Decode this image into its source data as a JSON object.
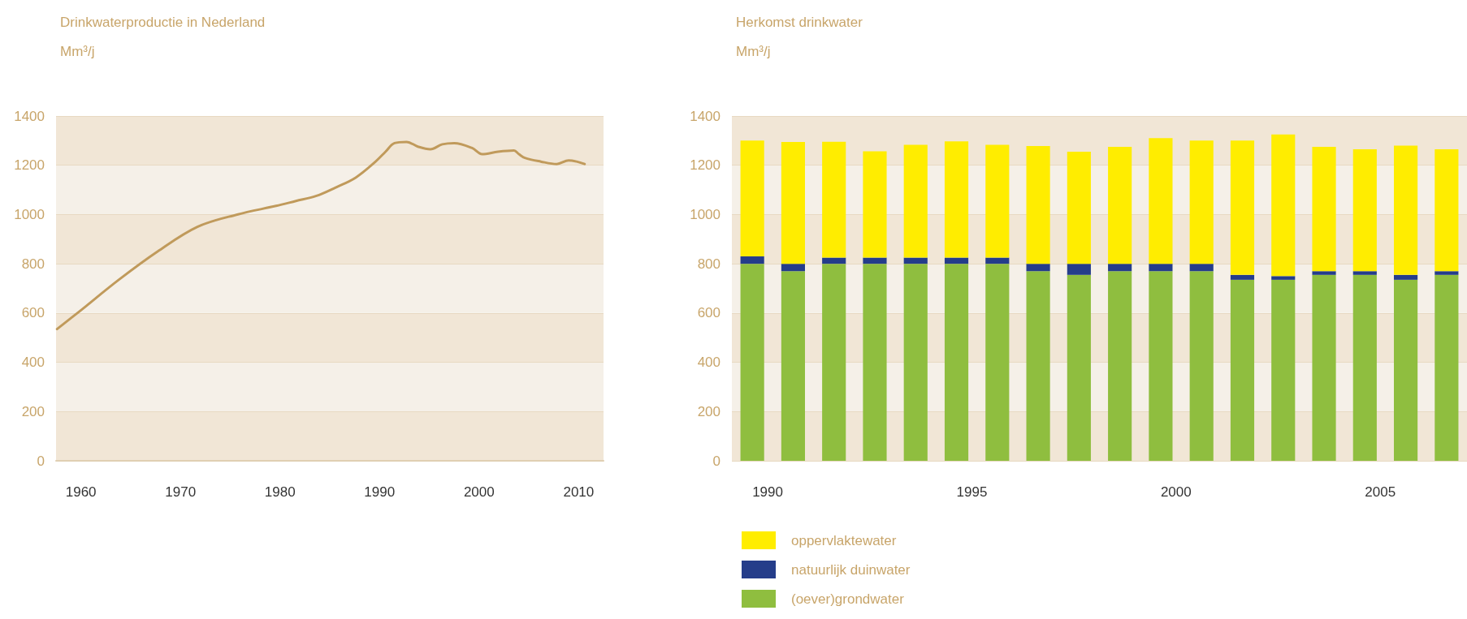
{
  "chart_data": [
    {
      "type": "line",
      "title": "Drinkwaterproductie in Nederland",
      "ylabel": "Mm³/j",
      "xlim": [
        1957.5,
        2012.5
      ],
      "xticks": [
        1960,
        1970,
        1980,
        1990,
        2000,
        2010
      ],
      "ylim": [
        0,
        1400
      ],
      "yticks": [
        0,
        200,
        400,
        600,
        800,
        1000,
        1200,
        1400
      ],
      "grid": "y",
      "marker": "none",
      "legend": false,
      "series": [
        {
          "color": "#c09a5b",
          "x": [
            1957.6,
            1959.8,
            1963.8,
            1967.7,
            1971.7,
            1975.7,
            1979.6,
            1981.6,
            1983.6,
            1985.6,
            1987.6,
            1989.6,
            1990.6,
            1991.5,
            1992.7,
            1993.9,
            1995.1,
            1996.3,
            1997.5,
            1999.3,
            2000.3,
            2001.9,
            2003.5,
            2004.0,
            2004.6,
            2006.2,
            2007.8,
            2009.0,
            2009.8,
            2010.6
          ],
          "values": [
            535,
            605,
            735,
            850,
            950,
            1000,
            1035,
            1055,
            1075,
            1110,
            1150,
            1215,
            1255,
            1290,
            1295,
            1275,
            1265,
            1285,
            1290,
            1270,
            1245,
            1255,
            1260,
            1245,
            1230,
            1215,
            1205,
            1220,
            1215,
            1205
          ]
        }
      ]
    },
    {
      "type": "bar",
      "title": "Herkomst drinkwater",
      "ylabel": "Mm³/j",
      "stacked": true,
      "ylim": [
        0,
        1400
      ],
      "yticks": [
        0,
        200,
        400,
        600,
        800,
        1000,
        1200,
        1400
      ],
      "grid": "y",
      "legend": "bottom left",
      "categories": [
        "1990",
        null,
        null,
        null,
        null,
        "1995",
        null,
        null,
        null,
        null,
        "2000",
        null,
        null,
        null,
        null,
        "2005",
        null,
        null
      ],
      "series": [
        {
          "name": "(oever)grondwater",
          "color": "#8fbe3f",
          "values": [
            800,
            770,
            800,
            800,
            800,
            800,
            800,
            770,
            755,
            770,
            770,
            770,
            735,
            735,
            755,
            755,
            735,
            755
          ]
        },
        {
          "name": "natuurlijk duinwater",
          "color": "#253d8a",
          "values": [
            30,
            30,
            25,
            25,
            25,
            25,
            25,
            30,
            45,
            30,
            30,
            30,
            20,
            15,
            15,
            15,
            20,
            15
          ]
        },
        {
          "name": "oppervlaktewater",
          "color": "#ffed00",
          "values": [
            470,
            495,
            470,
            432,
            458,
            472,
            458,
            478,
            455,
            475,
            510,
            500,
            545,
            575,
            505,
            495,
            525,
            495
          ]
        }
      ]
    }
  ]
}
